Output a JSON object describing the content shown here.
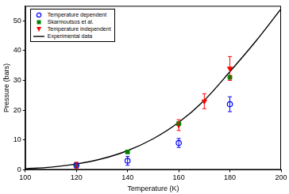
{
  "chart_data": {
    "type": "scatter",
    "xlabel": "Temperature (K)",
    "ylabel": "Pressure (bars)",
    "xlim": [
      100,
      200
    ],
    "xticks": [
      100,
      120,
      140,
      160,
      180,
      200
    ],
    "ylim": [
      0,
      55
    ],
    "yticks": [
      0,
      10,
      20,
      30,
      40,
      50
    ],
    "grid": false,
    "legend": "upper left",
    "series": [
      {
        "name": "Temperature dependent",
        "color": "#0000ff",
        "marker": "circle",
        "x": [
          120,
          140,
          160,
          180
        ],
        "values": [
          1.5,
          3,
          9,
          22
        ],
        "errors": [
          0.8,
          1.5,
          1.5,
          2.5
        ]
      },
      {
        "name": "Skarmoutsos et al.",
        "color": "#008000",
        "marker": "square",
        "x": [
          120,
          140,
          160,
          180
        ],
        "values": [
          1.8,
          6,
          15.5,
          31
        ]
      },
      {
        "name": "Temperature independent",
        "color": "#ff0000",
        "marker": "triangle-down",
        "x": [
          120,
          160,
          170,
          180
        ],
        "values": [
          1.5,
          15,
          23,
          34
        ],
        "errors": [
          1,
          1.8,
          2.5,
          4
        ]
      },
      {
        "name": "Experimental data",
        "color": "#000000",
        "type": "line",
        "line_style": "solid",
        "x": [
          100,
          110,
          120,
          130,
          140,
          150,
          160,
          170,
          180,
          190,
          200
        ],
        "values": [
          0.34,
          0.88,
          1.92,
          3.68,
          6.41,
          10.4,
          15.9,
          23.3,
          32.9,
          43,
          54
        ]
      }
    ]
  }
}
